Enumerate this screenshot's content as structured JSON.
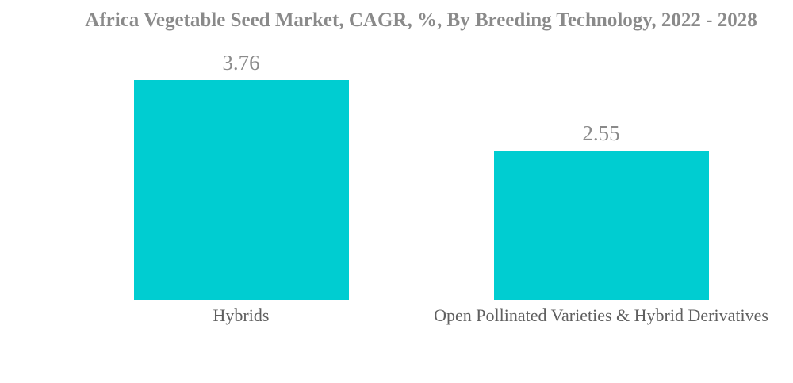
{
  "chart_data": {
    "type": "bar",
    "orientation": "vertical",
    "title": "Africa Vegetable Seed Market, CAGR, %, By Breeding Technology, 2022 - 2028",
    "categories": [
      "Hybrids",
      "Open Pollinated Varieties & Hybrid Derivatives"
    ],
    "values": [
      3.76,
      2.55
    ],
    "value_labels": [
      "3.76",
      "2.55"
    ],
    "xlabel": "",
    "ylabel": "",
    "ylim": [
      0,
      3.76
    ],
    "grid": false,
    "legend": false,
    "axes_visible": false,
    "background": "#FFFFFF",
    "bar_color": "#00CDD1",
    "title_color": "#8A8A8A",
    "value_label_color": "#8A8A8A",
    "category_label_color": "#5F5F5F"
  }
}
